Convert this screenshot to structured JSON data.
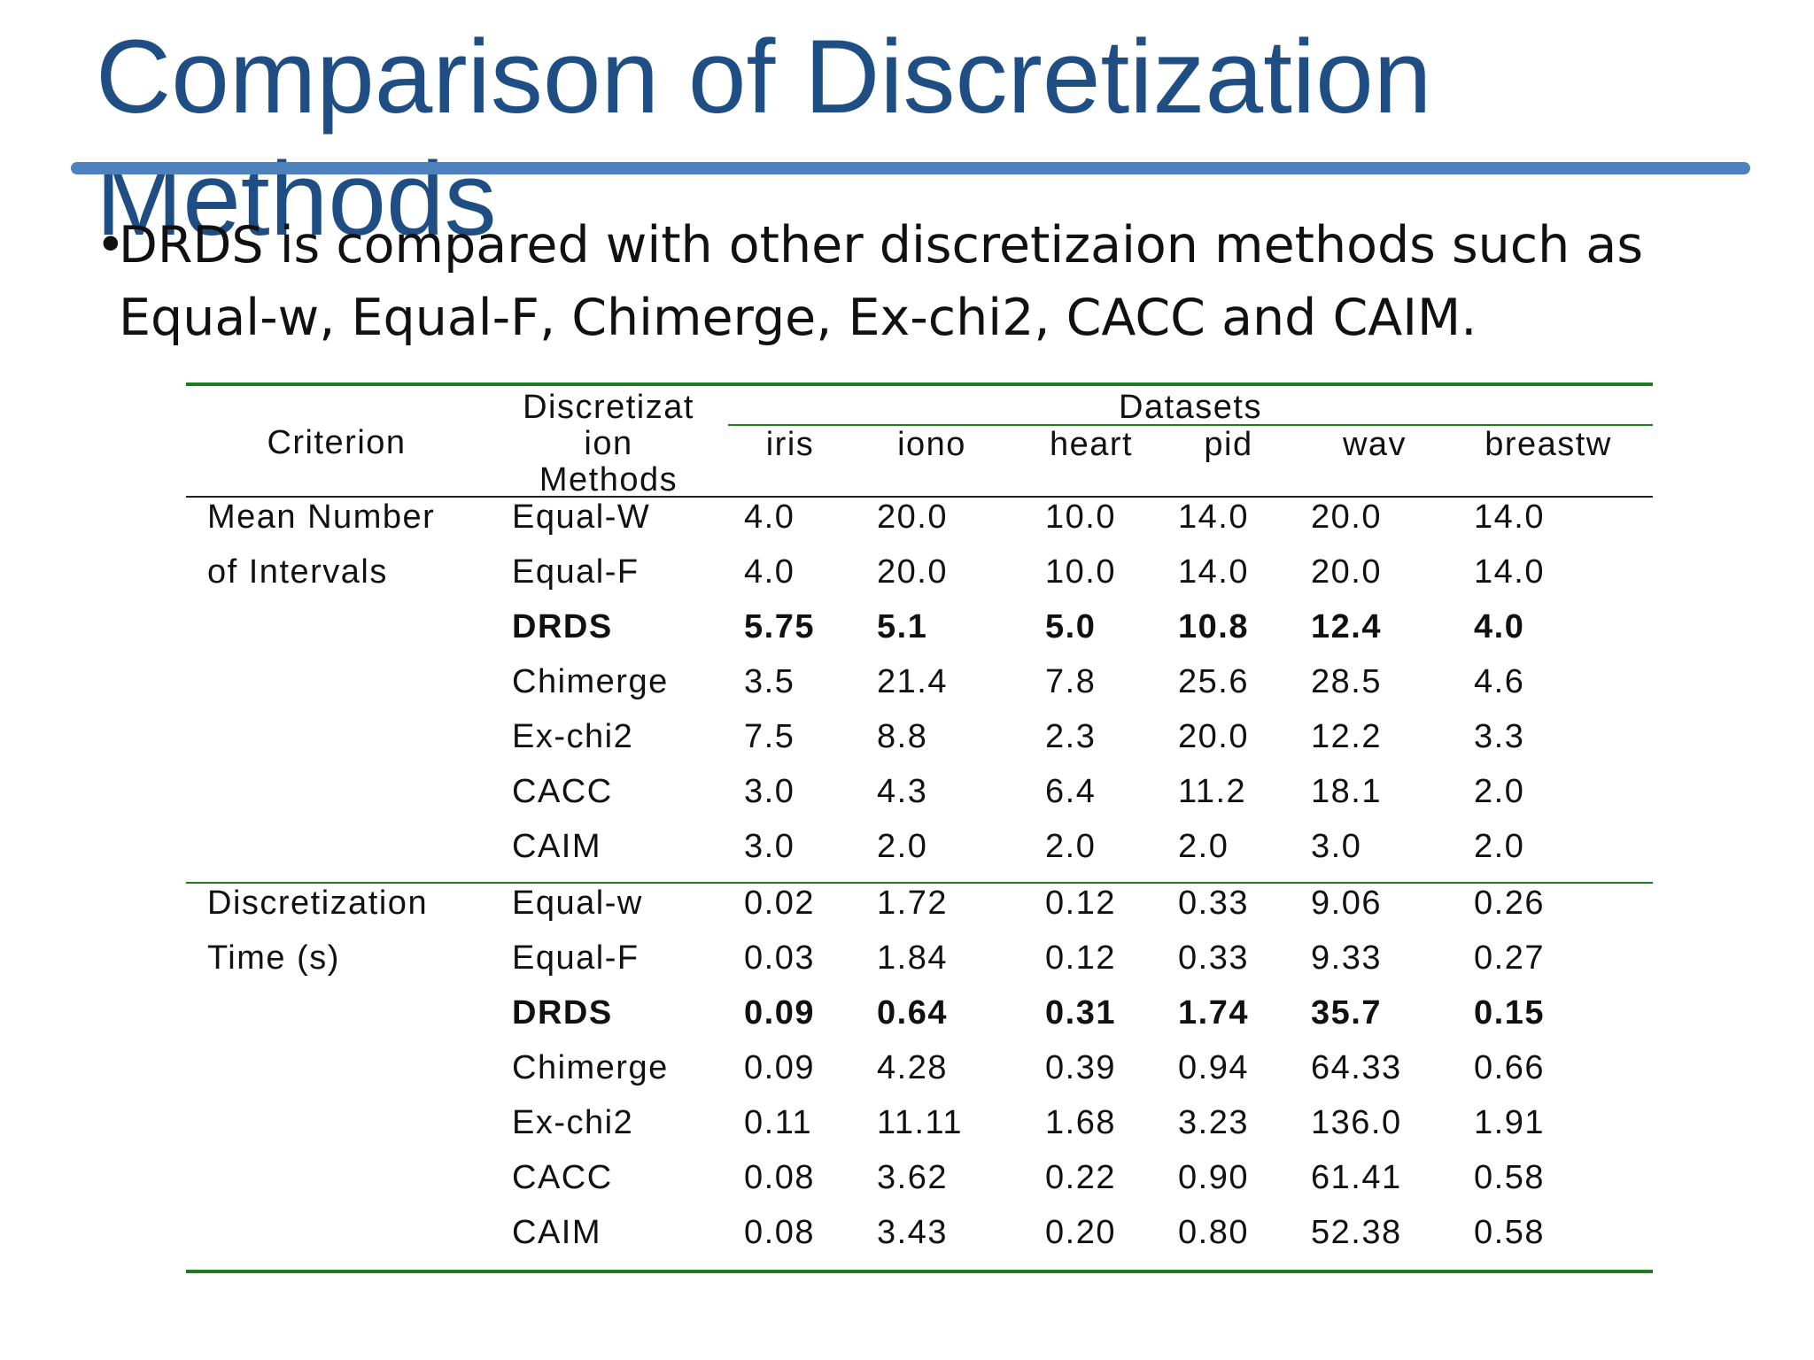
{
  "title": "Comparison of Discretization Methods",
  "bullet": "DRDS is compared with other discretizaion methods such as Equal-w, Equal-F, Chimerge, Ex-chi2, CACC and CAIM.",
  "table": {
    "criterion_header": "Criterion",
    "method_header": [
      "Discretizat",
      "ion",
      "Methods"
    ],
    "datasets_header": "Datasets",
    "datasets": [
      "iris",
      "iono",
      "heart",
      "pid",
      "wav",
      "breastw"
    ],
    "groups": [
      {
        "criterion": [
          "Mean Number",
          "of Intervals"
        ],
        "rows": [
          {
            "method": "Equal-W",
            "values": [
              "4.0",
              "20.0",
              "10.0",
              "14.0",
              "20.0",
              "14.0"
            ],
            "bold": false
          },
          {
            "method": "Equal-F",
            "values": [
              "4.0",
              "20.0",
              "10.0",
              "14.0",
              "20.0",
              "14.0"
            ],
            "bold": false
          },
          {
            "method": "DRDS",
            "values": [
              "5.75",
              "5.1",
              "5.0",
              "10.8",
              "12.4",
              "4.0"
            ],
            "bold": true
          },
          {
            "method": "Chimerge",
            "values": [
              "3.5",
              "21.4",
              "7.8",
              "25.6",
              "28.5",
              "4.6"
            ],
            "bold": false
          },
          {
            "method": "Ex-chi2",
            "values": [
              "7.5",
              "8.8",
              "2.3",
              "20.0",
              "12.2",
              "3.3"
            ],
            "bold": false
          },
          {
            "method": "CACC",
            "values": [
              "3.0",
              "4.3",
              "6.4",
              "11.2",
              "18.1",
              "2.0"
            ],
            "bold": false
          },
          {
            "method": "CAIM",
            "values": [
              "3.0",
              "2.0",
              "2.0",
              "2.0",
              "3.0",
              "2.0"
            ],
            "bold": false
          }
        ]
      },
      {
        "criterion": [
          "Discretization",
          "Time (s)"
        ],
        "rows": [
          {
            "method": "Equal-w",
            "values": [
              "0.02",
              "1.72",
              "0.12",
              "0.33",
              "9.06",
              "0.26"
            ],
            "bold": false
          },
          {
            "method": "Equal-F",
            "values": [
              "0.03",
              "1.84",
              "0.12",
              "0.33",
              "9.33",
              "0.27"
            ],
            "bold": false
          },
          {
            "method": "DRDS",
            "values": [
              "0.09",
              "0.64",
              "0.31",
              "1.74",
              "35.7",
              "0.15"
            ],
            "bold": true
          },
          {
            "method": "Chimerge",
            "values": [
              "0.09",
              "4.28",
              "0.39",
              "0.94",
              "64.33",
              "0.66"
            ],
            "bold": false
          },
          {
            "method": "Ex-chi2",
            "values": [
              "0.11",
              "11.11",
              "1.68",
              "3.23",
              "136.0",
              "1.91"
            ],
            "bold": false
          },
          {
            "method": "CACC",
            "values": [
              "0.08",
              "3.62",
              "0.22",
              "0.90",
              "61.41",
              "0.58"
            ],
            "bold": false
          },
          {
            "method": "CAIM",
            "values": [
              "0.08",
              "3.43",
              "0.20",
              "0.80",
              "52.38",
              "0.58"
            ],
            "bold": false
          }
        ]
      }
    ]
  }
}
